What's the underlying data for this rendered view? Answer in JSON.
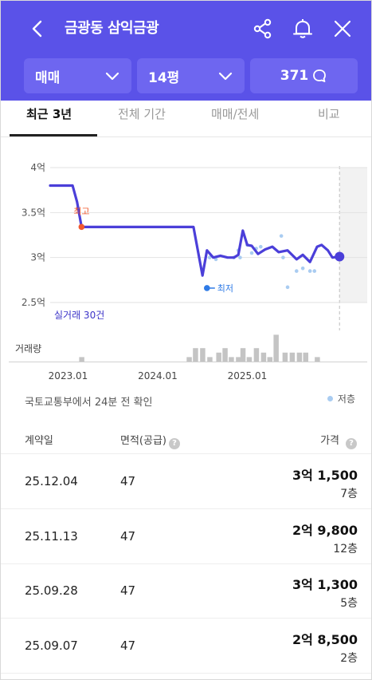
{
  "header": {
    "title": "금광동 삼익금광",
    "back_icon": "chevron-left-icon",
    "share_icon": "share-icon",
    "bell_icon": "bell-icon",
    "close_icon": "close-icon"
  },
  "filters": {
    "deal_type": "매매",
    "size": "14평",
    "comments_count": "371"
  },
  "tabs": [
    "최근 3년",
    "전체 기간",
    "매매/전세",
    "비교"
  ],
  "chart_data": {
    "type": "line",
    "y_tick_labels": [
      "4억",
      "3.5억",
      "3억",
      "2.5억"
    ],
    "y_ticks": [
      4.0,
      3.5,
      3.0,
      2.5
    ],
    "ylim": [
      2.5,
      4.0
    ],
    "x_tick_labels": [
      "2023.01",
      "2024.01",
      "2025.01"
    ],
    "x_ticks": [
      2023.0,
      2024.0,
      2025.0
    ],
    "xlim": [
      2022.8,
      2026.25
    ],
    "series": [
      {
        "x": [
          2022.8,
          2023.05,
          2023.1,
          2023.15,
          2023.3,
          2023.6,
          2023.9,
          2024.2,
          2024.4,
          2024.5,
          2024.55,
          2024.62,
          2024.7,
          2024.78,
          2024.85,
          2024.9,
          2024.95,
          2025.0,
          2025.05,
          2025.12,
          2025.2,
          2025.28,
          2025.35,
          2025.45,
          2025.55,
          2025.62,
          2025.7,
          2025.78,
          2025.83,
          2025.9,
          2025.95,
          2026.03
        ],
        "y": [
          3.8,
          3.8,
          3.62,
          3.34,
          3.34,
          3.34,
          3.34,
          3.34,
          3.34,
          2.8,
          3.08,
          3.0,
          3.02,
          3.0,
          3.0,
          3.03,
          3.3,
          3.14,
          3.13,
          3.04,
          3.09,
          3.12,
          3.06,
          3.08,
          2.98,
          3.03,
          2.95,
          3.12,
          3.14,
          3.08,
          3.0,
          3.01
        ]
      }
    ],
    "scatter_x": [
      2024.58,
      2024.65,
      2024.85,
      2024.9,
      2024.92,
      2025.0,
      2025.05,
      2025.1,
      2025.15,
      2025.38,
      2025.4,
      2025.45,
      2025.55,
      2025.62,
      2025.7,
      2025.75
    ],
    "scatter_y": [
      3.0,
      2.98,
      3.0,
      3.08,
      3.0,
      3.14,
      3.05,
      3.1,
      3.12,
      3.24,
      3.0,
      2.67,
      2.85,
      2.88,
      2.85,
      2.85
    ],
    "high_label": "최고",
    "high_point": [
      2023.15,
      3.34
    ],
    "low_label": "최저",
    "low_point": [
      2024.55,
      2.66
    ],
    "current_point": [
      2026.03,
      3.01
    ],
    "transactions_label": "실거래 30건",
    "volume_label": "거래량",
    "volume_x": [
      2023.15,
      2024.35,
      2024.42,
      2024.5,
      2024.58,
      2024.68,
      2024.75,
      2024.82,
      2024.9,
      2024.95,
      2025.02,
      2025.1,
      2025.18,
      2025.25,
      2025.32,
      2025.42,
      2025.5,
      2025.58,
      2025.65,
      2025.78
    ],
    "volume": [
      1,
      1,
      3,
      3,
      1,
      2,
      3,
      1,
      1,
      3,
      1,
      3,
      2,
      1,
      6,
      2,
      2,
      2,
      2,
      1
    ],
    "colors": {
      "line": "#4b3fd9",
      "high": "#f0582e",
      "low": "#2f7be6",
      "scatter": "#a9ccf1",
      "volume": "#c4c4c4"
    }
  },
  "update_info": "국토교통부에서 24분 전 확인",
  "legend_label": "저층",
  "table": {
    "headers": {
      "date": "계약일",
      "area": "면적(공급)",
      "price": "가격"
    },
    "rows": [
      {
        "date": "25.12.04",
        "area": "47",
        "price": "3억 1,500",
        "floor": "7층"
      },
      {
        "date": "25.11.13",
        "area": "47",
        "price": "2억 9,800",
        "floor": "12층"
      },
      {
        "date": "25.09.28",
        "area": "47",
        "price": "3억 1,300",
        "floor": "5층"
      },
      {
        "date": "25.09.07",
        "area": "47",
        "price": "2억 8,500",
        "floor": "2층"
      }
    ]
  }
}
